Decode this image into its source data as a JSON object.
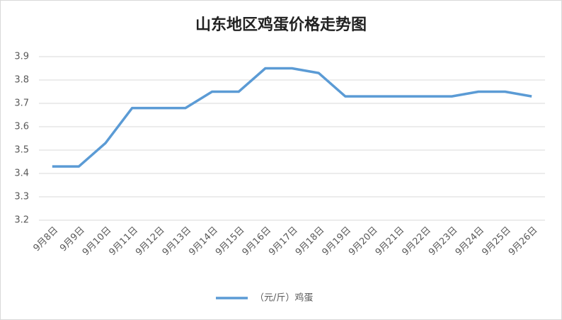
{
  "chart_data": {
    "type": "line",
    "title": "山东地区鸡蛋价格走势图",
    "categories": [
      "9月8日",
      "9月9日",
      "9月10日",
      "9月11日",
      "9月12日",
      "9月13日",
      "9月14日",
      "9月15日",
      "9月16日",
      "9月17日",
      "9月18日",
      "9月19日",
      "9月20日",
      "9月21日",
      "9月22日",
      "9月23日",
      "9月24日",
      "9月25日",
      "9月26日"
    ],
    "series": [
      {
        "name": "（元/斤）鸡蛋",
        "color": "#5b9bd5",
        "values": [
          3.43,
          3.43,
          3.53,
          3.68,
          3.68,
          3.68,
          3.75,
          3.75,
          3.85,
          3.85,
          3.83,
          3.73,
          3.73,
          3.73,
          3.73,
          3.73,
          3.75,
          3.75,
          3.73
        ]
      }
    ],
    "ylim": [
      3.2,
      3.9
    ],
    "yticks": [
      3.2,
      3.3,
      3.4,
      3.5,
      3.6,
      3.7,
      3.8,
      3.9
    ],
    "grid": true,
    "legend": "bottom"
  }
}
